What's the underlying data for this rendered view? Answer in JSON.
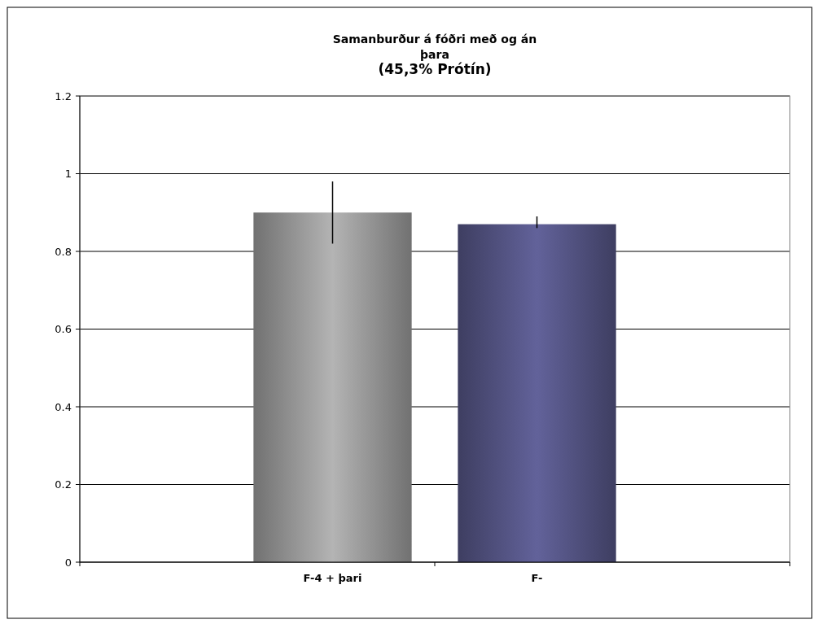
{
  "chart_data": {
    "type": "bar",
    "title": "Samanburður á fóðri með og án þara",
    "subtitle": "(45,3% Prótín)",
    "categories": [
      "F-4 + þari",
      "F-"
    ],
    "values": [
      0.9,
      0.87
    ],
    "colors": [
      "#b4b4b4",
      "#62629a"
    ],
    "errors": [
      [
        0.82,
        0.98
      ],
      [
        0.86,
        0.89
      ]
    ],
    "ylim": [
      0,
      1.2
    ],
    "yticks": [
      0,
      0.2,
      0.4,
      0.6,
      0.8,
      1,
      1.2
    ],
    "grid": "y"
  }
}
